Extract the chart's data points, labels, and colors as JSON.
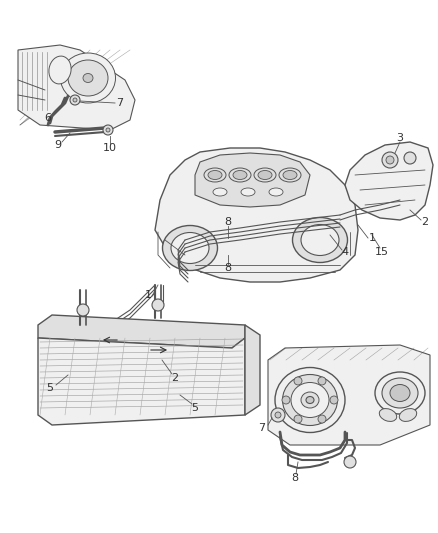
{
  "bg_color": "#ffffff",
  "line_color": "#555555",
  "dark_color": "#333333",
  "label_color": "#333333",
  "fill_light": "#f0f0f0",
  "fill_mid": "#e0e0e0",
  "fill_dark": "#c8c8c8",
  "fig_width": 4.38,
  "fig_height": 5.33,
  "dpi": 100
}
